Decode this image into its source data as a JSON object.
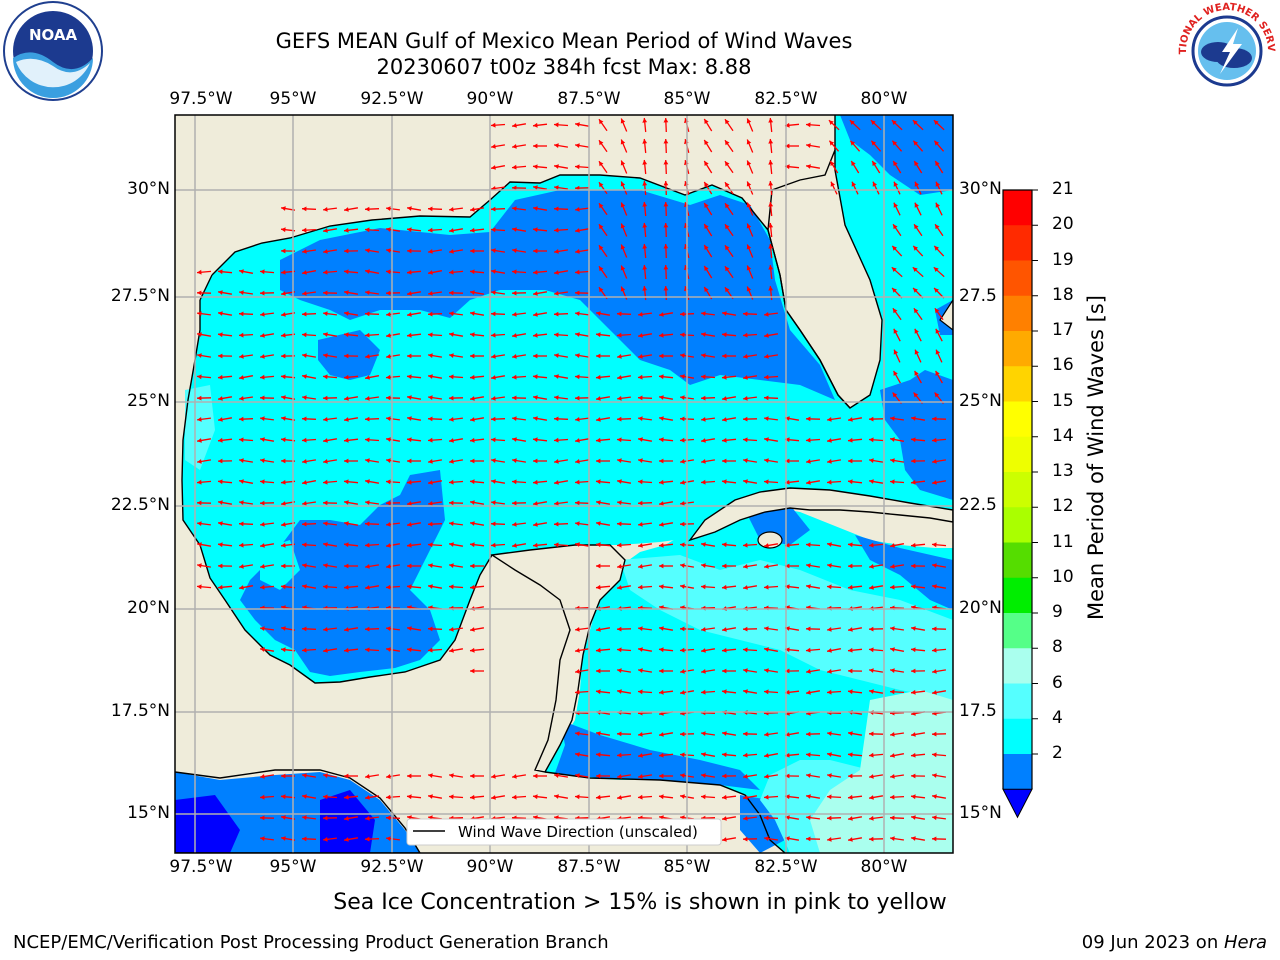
{
  "title": {
    "line1": "GEFS MEAN Gulf of Mexico Mean Period of Wind Waves",
    "line2": "20230607 t00z 384h fcst   Max: 8.88"
  },
  "axes": {
    "lon_labels": [
      "97.5°W",
      "95°W",
      "92.5°W",
      "90°W",
      "87.5°W",
      "85°W",
      "82.5°W",
      "80°W"
    ],
    "lat_labels_left": [
      "30°N",
      "27.5°N",
      "25°N",
      "22.5°N",
      "20°N",
      "17.5°N",
      "15°N"
    ],
    "lat_labels_right": [
      "30°N",
      "27.5",
      "25°N",
      "22.5",
      "20°N",
      "17.5",
      "15°N"
    ]
  },
  "legend": {
    "label": "Wind Wave Direction (unscaled)"
  },
  "colorbar": {
    "title": "Mean Period of Wind Waves [s]",
    "labels": [
      "21",
      "20",
      "19",
      "18",
      "17",
      "16",
      "15",
      "14",
      "13",
      "12",
      "11",
      "10",
      "9",
      "8",
      "6",
      "4",
      "2"
    ],
    "colors": [
      "#ff0000",
      "#ff2a00",
      "#ff5500",
      "#ff8000",
      "#ffaa00",
      "#ffd400",
      "#ffff00",
      "#eeff00",
      "#ccff00",
      "#aaff00",
      "#55dd00",
      "#00ee00",
      "#55ff88",
      "#aaffee",
      "#55ffff",
      "#00ffff",
      "#0080ff"
    ],
    "extend_color": "#0000ff"
  },
  "footer": {
    "note": "Sea Ice Concentration > 15% is shown in pink to yellow",
    "left": "NCEP/EMC/Verification Post Processing Product Generation Branch",
    "right_prefix": "09 Jun 2023 on ",
    "right_host": "Hera"
  },
  "logos": {
    "left": "NOAA",
    "right": "NATIONAL WEATHER SERVICE"
  },
  "colors": {
    "land": "#efecda",
    "ocean_deep": "#0080ff",
    "ocean_mid": "#00ffff",
    "ocean_light": "#55ffff",
    "arrows": "#ff0000"
  }
}
